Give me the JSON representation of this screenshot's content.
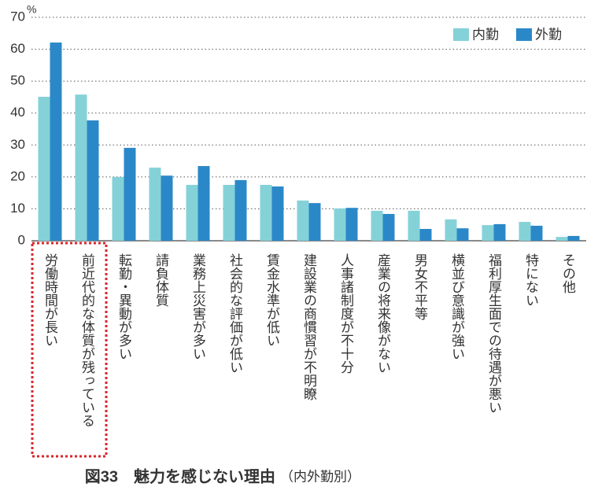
{
  "chart_data": {
    "type": "bar",
    "unit": "%",
    "title": "図33　魅力を感じない理由",
    "subtitle": "（内外勤別）",
    "categories": [
      "労働時間が長い",
      "前近代的な体質が残っている",
      "転勤・異動が多い",
      "請負体質",
      "業務上災害が多い",
      "社会的な評価が低い",
      "賃金水準が低い",
      "建設業の商慣習が不明瞭",
      "人事諸制度が不十分",
      "産業の将来像がない",
      "男女不平等",
      "横並び意識が強い",
      "福利厚生面での待遇が悪い",
      "特にない",
      "その他"
    ],
    "series": [
      {
        "name": "内勤",
        "color": "#84d2d8",
        "values": [
          45.1,
          45.8,
          20.0,
          22.9,
          17.5,
          17.5,
          17.5,
          12.6,
          10.1,
          9.4,
          9.4,
          6.7,
          4.9,
          5.9,
          1.2
        ]
      },
      {
        "name": "外勤",
        "color": "#2b88c8",
        "values": [
          62.1,
          37.7,
          29.1,
          20.4,
          23.4,
          19.0,
          17.0,
          11.8,
          10.3,
          8.4,
          3.7,
          3.9,
          5.2,
          4.7,
          1.5
        ]
      }
    ],
    "ylim": [
      0,
      70
    ],
    "yticks": [
      0,
      10,
      20,
      30,
      40,
      50,
      60,
      70
    ],
    "grid": true,
    "legend": "top-right"
  }
}
